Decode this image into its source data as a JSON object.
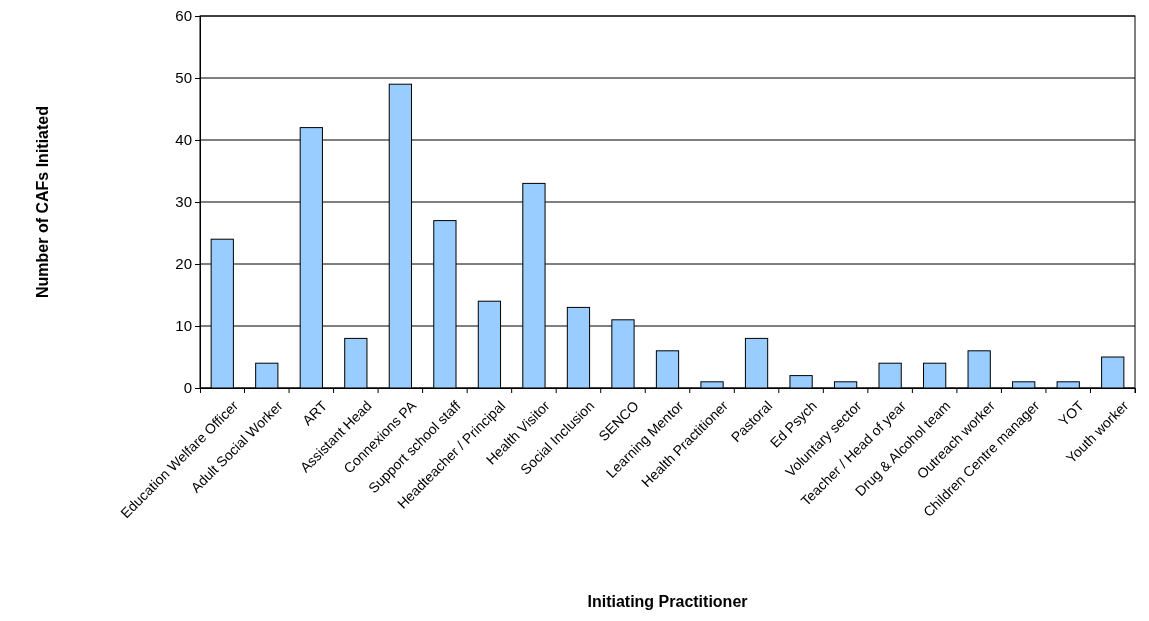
{
  "chart_data": {
    "type": "bar",
    "xlabel": "Initiating Practitioner",
    "ylabel": "Number of CAFs Initiated",
    "categories": [
      "Education Welfare Officer",
      "Adult Social Worker",
      "ART",
      "Assistant Head",
      "Connexions PA",
      "Support school staff",
      "Headteacher / Principal",
      "Health Visitor",
      "Social Inclusion",
      "SENCO",
      "Learning Mentor",
      "Health Practitioner",
      "Pastoral",
      "Ed Psych",
      "Voluntary sector",
      "Teacher / Head of year",
      "Drug & Alcohol team",
      "Outreach worker",
      "Children Centre manager",
      "YOT",
      "Youth worker"
    ],
    "values": [
      24,
      4,
      42,
      8,
      49,
      27,
      14,
      33,
      13,
      11,
      6,
      1,
      8,
      2,
      1,
      4,
      4,
      6,
      1,
      1,
      5
    ],
    "color": "#99ccff",
    "ylim": [
      0,
      60
    ],
    "yticks": [
      0,
      10,
      20,
      30,
      40,
      50,
      60
    ],
    "grid": "y"
  }
}
